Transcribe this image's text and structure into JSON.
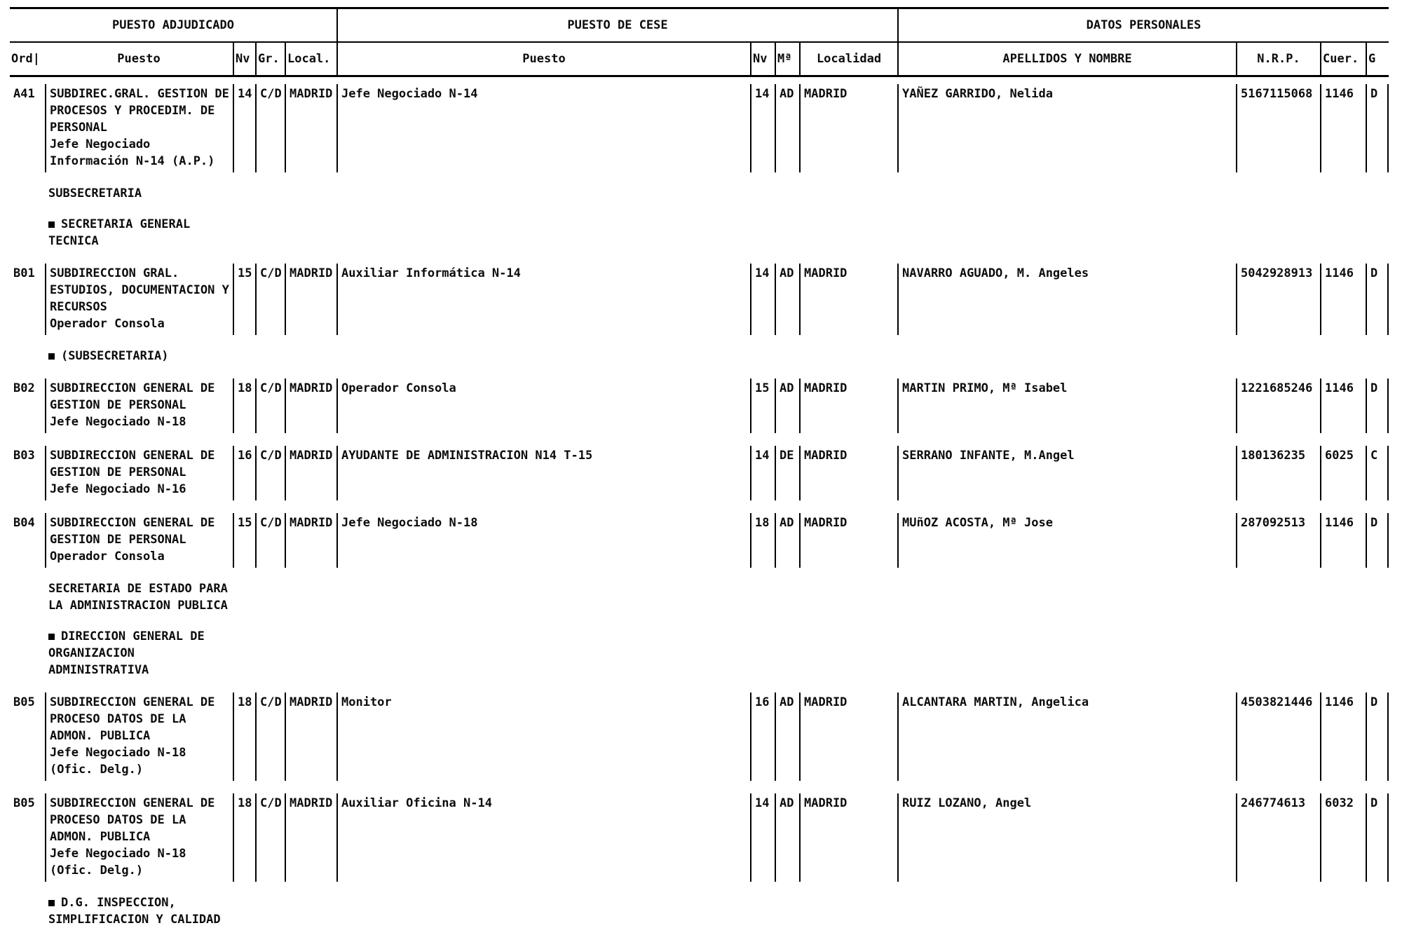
{
  "doc": {
    "groups": [
      "PUESTO ADJUDICADO",
      "PUESTO DE CESE",
      "DATOS PERSONALES"
    ],
    "cols": {
      "ord": "Ord|",
      "puesto1": "Puesto",
      "nv1": "Nv",
      "gr1": "Gr.",
      "local1": "Local.",
      "puesto2": "Puesto",
      "nv2": "Nv",
      "ma2": "Mª",
      "localidad2": "Localidad",
      "nombre": "APELLIDOS Y NOMBRE",
      "nrp": "N.R.P.",
      "cuer": "Cuer.",
      "g": "G"
    },
    "rows": [
      {
        "type": "data",
        "ord": "A41",
        "puesto": [
          "SUBDIREC.GRAL. GESTION DE",
          "PROCESOS Y PROCEDIM. DE",
          "PERSONAL",
          "Jefe Negociado",
          "Información N-14 (A.P.)"
        ],
        "nv1": "14",
        "gr1": "C/D",
        "local1": "MADRID",
        "cese": [
          "Jefe Negociado N-14"
        ],
        "nv2": "14",
        "ma2": "AD",
        "loc2": "MADRID",
        "nombre": "YAÑEZ GARRIDO, Nelida",
        "nrp": "5167115068",
        "cuer": "1146",
        "g": "D"
      },
      {
        "type": "section",
        "lines": [
          "SUBSECRETARIA"
        ]
      },
      {
        "type": "bullet",
        "lines": [
          "SECRETARIA GENERAL",
          "TECNICA"
        ]
      },
      {
        "type": "data",
        "ord": "B01",
        "puesto": [
          "SUBDIRECCION GRAL.",
          "ESTUDIOS, DOCUMENTACION Y",
          "RECURSOS",
          "Operador Consola"
        ],
        "nv1": "15",
        "gr1": "C/D",
        "local1": "MADRID",
        "cese": [
          "Auxiliar Informática N-14"
        ],
        "nv2": "14",
        "ma2": "AD",
        "loc2": "MADRID",
        "nombre": "NAVARRO AGUADO, M. Angeles",
        "nrp": "5042928913",
        "cuer": "1146",
        "g": "D"
      },
      {
        "type": "bullet",
        "lines": [
          "(SUBSECRETARIA)"
        ]
      },
      {
        "type": "data",
        "ord": "B02",
        "puesto": [
          "SUBDIRECCION GENERAL DE",
          "GESTION DE PERSONAL",
          "Jefe Negociado N-18"
        ],
        "nv1": "18",
        "gr1": "C/D",
        "local1": "MADRID",
        "cese": [
          "Operador Consola"
        ],
        "nv2": "15",
        "ma2": "AD",
        "loc2": "MADRID",
        "nombre": "MARTIN PRIMO, Mª Isabel",
        "nrp": "1221685246",
        "cuer": "1146",
        "g": "D"
      },
      {
        "type": "data",
        "ord": "B03",
        "puesto": [
          "SUBDIRECCION GENERAL DE",
          "GESTION DE PERSONAL",
          "Jefe Negociado N-16"
        ],
        "nv1": "16",
        "gr1": "C/D",
        "local1": "MADRID",
        "cese": [
          "AYUDANTE DE ADMINISTRACION N14 T-15"
        ],
        "nv2": "14",
        "ma2": "DE",
        "loc2": "MADRID",
        "nombre": "SERRANO INFANTE, M.Angel",
        "nrp": "180136235",
        "cuer": "6025",
        "g": "C"
      },
      {
        "type": "data",
        "ord": "B04",
        "puesto": [
          "SUBDIRECCION GENERAL DE",
          "GESTION DE PERSONAL",
          "Operador Consola"
        ],
        "nv1": "15",
        "gr1": "C/D",
        "local1": "MADRID",
        "cese": [
          "Jefe Negociado N-18"
        ],
        "nv2": "18",
        "ma2": "AD",
        "loc2": "MADRID",
        "nombre": "MUñOZ ACOSTA, Mª Jose",
        "nrp": "287092513",
        "cuer": "1146",
        "g": "D"
      },
      {
        "type": "section",
        "lines": [
          "SECRETARIA DE ESTADO PARA",
          "LA ADMINISTRACION PUBLICA"
        ]
      },
      {
        "type": "bullet",
        "lines": [
          "DIRECCION GENERAL DE",
          "ORGANIZACION",
          "ADMINISTRATIVA"
        ]
      },
      {
        "type": "data",
        "ord": "B05",
        "puesto": [
          "SUBDIRECCION GENERAL DE",
          "PROCESO DATOS DE LA",
          "ADMON. PUBLICA",
          "Jefe Negociado N-18",
          "(Ofic. Delg.)"
        ],
        "nv1": "18",
        "gr1": "C/D",
        "local1": "MADRID",
        "cese": [
          "Monitor"
        ],
        "nv2": "16",
        "ma2": "AD",
        "loc2": "MADRID",
        "nombre": "ALCANTARA MARTIN, Angelica",
        "nrp": "4503821446",
        "cuer": "1146",
        "g": "D"
      },
      {
        "type": "data",
        "ord": "B05",
        "puesto": [
          "SUBDIRECCION GENERAL DE",
          "PROCESO DATOS DE LA",
          "ADMON. PUBLICA",
          "Jefe Negociado N-18",
          "(Ofic. Delg.)"
        ],
        "nv1": "18",
        "gr1": "C/D",
        "local1": "MADRID",
        "cese": [
          "Auxiliar Oficina N-14"
        ],
        "nv2": "14",
        "ma2": "AD",
        "loc2": "MADRID",
        "nombre": "RUIZ LOZANO, Angel",
        "nrp": "246774613",
        "cuer": "6032",
        "g": "D"
      },
      {
        "type": "bullet",
        "lines": [
          "D.G. INSPECCION,",
          "SIMPLIFICACION Y CALIDAD"
        ]
      }
    ]
  }
}
